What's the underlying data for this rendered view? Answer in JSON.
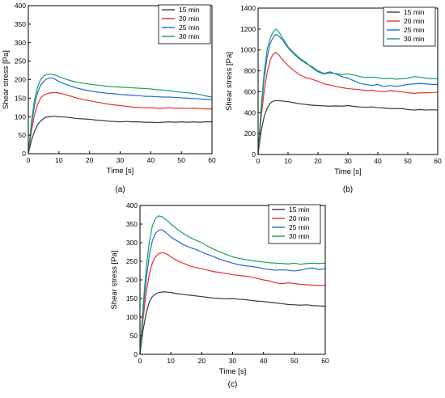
{
  "chart_data": [
    {
      "type": "line",
      "caption": "(a)",
      "xlabel": "Time [s]",
      "ylabel": "Shear stress [Pa]",
      "xlim": [
        0,
        60
      ],
      "ylim": [
        0,
        400
      ],
      "xticks": [
        0,
        10,
        20,
        30,
        40,
        50,
        60
      ],
      "yticks": [
        0,
        50,
        100,
        150,
        200,
        250,
        300,
        350,
        400
      ],
      "grid": false,
      "legend": "top-right",
      "x": [
        0,
        1,
        2,
        3,
        4,
        5,
        6,
        7,
        8,
        9,
        10,
        12,
        14,
        16,
        18,
        20,
        22,
        24,
        26,
        28,
        30,
        32,
        34,
        36,
        38,
        40,
        42,
        44,
        46,
        48,
        50,
        52,
        54,
        56,
        58,
        60
      ],
      "series": [
        {
          "name": "15 min",
          "color": "#3a3a3a",
          "values": [
            0,
            35,
            60,
            78,
            88,
            95,
            99,
            100,
            101,
            101,
            100,
            99,
            97,
            95,
            94,
            93,
            91,
            90,
            88,
            87,
            86,
            87,
            86,
            86,
            85,
            85,
            84,
            85,
            86,
            85,
            86,
            85,
            86,
            85,
            86,
            86
          ]
        },
        {
          "name": "20 min",
          "color": "#e8312a",
          "values": [
            0,
            60,
            105,
            133,
            150,
            158,
            162,
            164,
            165,
            165,
            164,
            160,
            155,
            150,
            146,
            143,
            140,
            137,
            134,
            132,
            130,
            128,
            126,
            125,
            124,
            124,
            123,
            123,
            124,
            123,
            123,
            122,
            123,
            122,
            121,
            121
          ]
        },
        {
          "name": "25 min",
          "color": "#1e6bd6",
          "values": [
            0,
            75,
            130,
            165,
            185,
            195,
            202,
            205,
            204,
            200,
            195,
            188,
            182,
            177,
            173,
            170,
            167,
            165,
            163,
            162,
            160,
            159,
            158,
            157,
            155,
            155,
            154,
            153,
            153,
            152,
            151,
            150,
            149,
            148,
            147,
            146
          ]
        },
        {
          "name": "30 min",
          "color": "#1aa05a",
          "values": [
            0,
            85,
            145,
            180,
            200,
            210,
            214,
            215,
            214,
            212,
            208,
            202,
            197,
            193,
            190,
            188,
            186,
            184,
            182,
            181,
            180,
            179,
            178,
            177,
            176,
            175,
            173,
            172,
            170,
            168,
            166,
            165,
            163,
            160,
            156,
            153
          ]
        }
      ]
    },
    {
      "type": "line",
      "caption": "(b)",
      "xlabel": "Time [s]",
      "ylabel": "Shear stress [Pa]",
      "xlim": [
        0,
        60
      ],
      "ylim": [
        0,
        1400
      ],
      "xticks": [
        0,
        10,
        20,
        30,
        40,
        50,
        60
      ],
      "yticks": [
        0,
        200,
        400,
        600,
        800,
        1000,
        1200,
        1400
      ],
      "grid": false,
      "legend": "top-right",
      "x": [
        0,
        1,
        2,
        3,
        4,
        5,
        6,
        7,
        8,
        9,
        10,
        12,
        14,
        16,
        18,
        20,
        22,
        24,
        26,
        28,
        30,
        32,
        34,
        36,
        38,
        40,
        42,
        44,
        46,
        48,
        50,
        52,
        54,
        56,
        58,
        60
      ],
      "series": [
        {
          "name": "15 min",
          "color": "#3a3a3a",
          "values": [
            0,
            220,
            360,
            440,
            490,
            510,
            515,
            515,
            512,
            508,
            505,
            495,
            485,
            478,
            472,
            468,
            465,
            462,
            465,
            462,
            468,
            460,
            455,
            452,
            455,
            448,
            445,
            440,
            438,
            440,
            430,
            425,
            430,
            425,
            428,
            425
          ]
        },
        {
          "name": "20 min",
          "color": "#e8312a",
          "values": [
            0,
            350,
            600,
            780,
            900,
            960,
            975,
            950,
            910,
            880,
            850,
            800,
            760,
            735,
            720,
            700,
            675,
            665,
            650,
            640,
            630,
            625,
            620,
            610,
            615,
            605,
            600,
            610,
            605,
            600,
            590,
            585,
            590,
            590,
            592,
            595
          ]
        },
        {
          "name": "25 min",
          "color": "#1e6bd6",
          "values": [
            0,
            420,
            720,
            930,
            1060,
            1120,
            1150,
            1130,
            1100,
            1060,
            1020,
            960,
            910,
            870,
            840,
            800,
            775,
            790,
            770,
            745,
            730,
            705,
            680,
            670,
            660,
            670,
            650,
            660,
            650,
            660,
            670,
            675,
            680,
            675,
            670,
            670
          ]
        },
        {
          "name": "30 min",
          "color": "#1aa05a",
          "values": [
            0,
            450,
            780,
            1000,
            1110,
            1170,
            1200,
            1170,
            1120,
            1080,
            1030,
            970,
            920,
            880,
            830,
            790,
            770,
            780,
            775,
            765,
            770,
            760,
            745,
            735,
            740,
            735,
            725,
            730,
            720,
            725,
            730,
            745,
            740,
            730,
            725,
            725
          ]
        }
      ]
    },
    {
      "type": "line",
      "caption": "(c)",
      "xlabel": "Time [s]",
      "ylabel": "Shear stress [Pa]",
      "xlim": [
        0,
        60
      ],
      "ylim": [
        0,
        400
      ],
      "xticks": [
        0,
        10,
        20,
        30,
        40,
        50,
        60
      ],
      "yticks": [
        0,
        50,
        100,
        150,
        200,
        250,
        300,
        350,
        400
      ],
      "grid": false,
      "legend": "top-right",
      "x": [
        0,
        1,
        2,
        3,
        4,
        5,
        6,
        7,
        8,
        9,
        10,
        12,
        14,
        16,
        18,
        20,
        22,
        24,
        26,
        28,
        30,
        32,
        34,
        36,
        38,
        40,
        42,
        44,
        46,
        48,
        50,
        52,
        54,
        56,
        58,
        60
      ],
      "series": [
        {
          "name": "15 min",
          "color": "#3a3a3a",
          "values": [
            0,
            65,
            110,
            140,
            155,
            162,
            166,
            167,
            168,
            167,
            166,
            163,
            161,
            159,
            157,
            155,
            153,
            151,
            150,
            149,
            150,
            148,
            147,
            145,
            143,
            142,
            140,
            138,
            136,
            134,
            133,
            132,
            133,
            131,
            130,
            129
          ]
        },
        {
          "name": "20 min",
          "color": "#e8312a",
          "values": [
            0,
            95,
            165,
            215,
            245,
            262,
            270,
            273,
            272,
            268,
            262,
            252,
            245,
            238,
            233,
            230,
            226,
            222,
            220,
            217,
            214,
            212,
            210,
            208,
            204,
            200,
            197,
            192,
            190,
            192,
            190,
            188,
            187,
            186,
            185,
            186
          ]
        },
        {
          "name": "25 min",
          "color": "#1e6bd6",
          "values": [
            0,
            115,
            200,
            265,
            305,
            325,
            333,
            335,
            330,
            323,
            315,
            305,
            295,
            288,
            282,
            275,
            268,
            262,
            255,
            250,
            245,
            241,
            238,
            236,
            234,
            230,
            228,
            226,
            227,
            226,
            224,
            226,
            230,
            232,
            228,
            230
          ]
        },
        {
          "name": "30 min",
          "color": "#1aa05a",
          "values": [
            0,
            130,
            230,
            300,
            345,
            365,
            372,
            370,
            365,
            358,
            350,
            337,
            325,
            315,
            307,
            300,
            290,
            282,
            275,
            268,
            262,
            258,
            255,
            252,
            250,
            248,
            246,
            245,
            244,
            243,
            245,
            242,
            244,
            245,
            244,
            245
          ]
        }
      ]
    }
  ]
}
